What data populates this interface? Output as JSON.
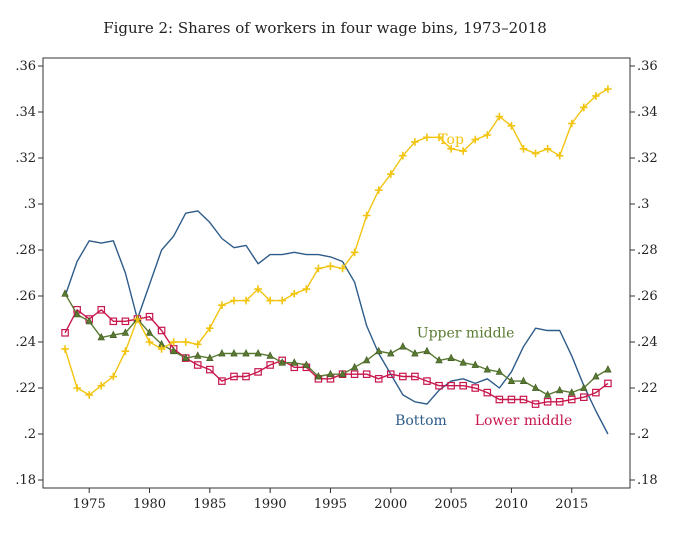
{
  "chart_data": {
    "type": "line",
    "title": "Figure 2: Shares of workers in four wage bins, 1973–2018",
    "xlabel": "",
    "ylabel": "",
    "xlim": [
      1972,
      2019
    ],
    "ylim": [
      0.18,
      0.36
    ],
    "x_ticks": [
      1975,
      1980,
      1985,
      1990,
      1995,
      2000,
      2005,
      2010,
      2015
    ],
    "y_ticks": [
      0.18,
      0.2,
      0.22,
      0.24,
      0.26,
      0.28,
      0.3,
      0.32,
      0.34,
      0.36
    ],
    "y_tick_labels": [
      ".18",
      ".2",
      ".22",
      ".24",
      ".26",
      ".28",
      ".3",
      ".32",
      ".34",
      ".36"
    ],
    "grid": false,
    "legend": "none (series labeled inline)",
    "x": [
      1973,
      1974,
      1975,
      1976,
      1977,
      1978,
      1979,
      1980,
      1981,
      1982,
      1983,
      1984,
      1985,
      1986,
      1987,
      1988,
      1989,
      1990,
      1991,
      1992,
      1993,
      1994,
      1995,
      1996,
      1997,
      1998,
      1999,
      2000,
      2001,
      2002,
      2003,
      2004,
      2005,
      2006,
      2007,
      2008,
      2009,
      2010,
      2011,
      2012,
      2013,
      2014,
      2015,
      2016,
      2017,
      2018
    ],
    "series": [
      {
        "name": "Bottom",
        "color": "#2e5c8a",
        "marker": "none",
        "values": [
          0.26,
          0.275,
          0.284,
          0.283,
          0.284,
          0.27,
          0.25,
          0.265,
          0.28,
          0.286,
          0.296,
          0.297,
          0.292,
          0.285,
          0.281,
          0.282,
          0.274,
          0.278,
          0.278,
          0.279,
          0.278,
          0.278,
          0.277,
          0.275,
          0.266,
          0.247,
          0.235,
          0.226,
          0.217,
          0.214,
          0.213,
          0.219,
          0.223,
          0.224,
          0.222,
          0.224,
          0.22,
          0.227,
          0.238,
          0.246,
          0.245,
          0.245,
          0.234,
          0.221,
          0.21,
          0.2
        ]
      },
      {
        "name": "Lower middle",
        "color": "#c8174d",
        "marker": "square",
        "values": [
          0.244,
          0.254,
          0.25,
          0.254,
          0.249,
          0.249,
          0.25,
          0.251,
          0.245,
          0.237,
          0.233,
          0.23,
          0.228,
          0.223,
          0.225,
          0.225,
          0.227,
          0.23,
          0.232,
          0.229,
          0.229,
          0.224,
          0.224,
          0.226,
          0.226,
          0.226,
          0.224,
          0.226,
          0.225,
          0.225,
          0.223,
          0.221,
          0.221,
          0.221,
          0.22,
          0.218,
          0.215,
          0.215,
          0.215,
          0.213,
          0.214,
          0.214,
          0.215,
          0.216,
          0.218,
          0.222
        ]
      },
      {
        "name": "Upper middle",
        "color": "#5a7a32",
        "marker": "triangle",
        "values": [
          0.261,
          0.252,
          0.249,
          0.242,
          0.243,
          0.244,
          0.25,
          0.244,
          0.239,
          0.236,
          0.233,
          0.234,
          0.233,
          0.235,
          0.235,
          0.235,
          0.235,
          0.234,
          0.231,
          0.231,
          0.23,
          0.225,
          0.226,
          0.226,
          0.229,
          0.232,
          0.236,
          0.235,
          0.238,
          0.235,
          0.236,
          0.232,
          0.233,
          0.231,
          0.23,
          0.228,
          0.227,
          0.223,
          0.223,
          0.22,
          0.217,
          0.219,
          0.218,
          0.22,
          0.225,
          0.228
        ]
      },
      {
        "name": "Top",
        "color": "#f2c40f",
        "marker": "plus",
        "values": [
          0.237,
          0.22,
          0.217,
          0.221,
          0.225,
          0.236,
          0.25,
          0.24,
          0.237,
          0.24,
          0.24,
          0.239,
          0.246,
          0.256,
          0.258,
          0.258,
          0.263,
          0.258,
          0.258,
          0.261,
          0.263,
          0.272,
          0.273,
          0.272,
          0.279,
          0.295,
          0.306,
          0.313,
          0.321,
          0.327,
          0.329,
          0.329,
          0.324,
          0.323,
          0.328,
          0.33,
          0.338,
          0.334,
          0.324,
          0.322,
          0.324,
          0.321,
          0.335,
          0.342,
          0.347,
          0.35
        ]
      }
    ],
    "annotations": [
      {
        "series": "Top",
        "text": "Top",
        "x": 2005,
        "y": 0.326
      },
      {
        "series": "Upper middle",
        "text": "Upper middle",
        "x": 2006.2,
        "y": 0.242
      },
      {
        "series": "Bottom",
        "text": "Bottom",
        "x": 2002.5,
        "y": 0.204
      },
      {
        "series": "Lower middle",
        "text": "Lower middle",
        "x": 2011,
        "y": 0.204
      }
    ]
  }
}
